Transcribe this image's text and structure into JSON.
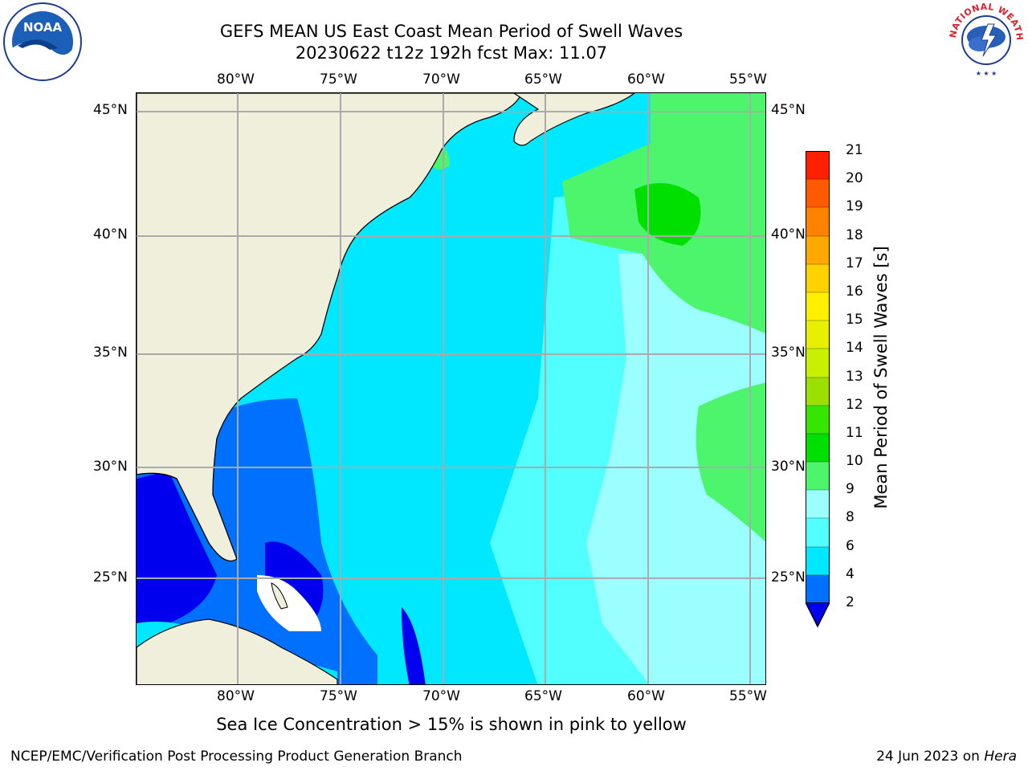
{
  "title": {
    "line1": "GEFS MEAN US East Coast Mean Period of Swell Waves",
    "line2": "20230622 t12z 192h fcst   Max: 11.07"
  },
  "map": {
    "lon_ticks": [
      "80°W",
      "75°W",
      "70°W",
      "65°W",
      "60°W",
      "55°W"
    ],
    "lat_ticks": [
      "45°N",
      "40°N",
      "35°N",
      "30°N",
      "25°N"
    ]
  },
  "colorbar": {
    "title": "Mean Period of Swell Waves [s]",
    "labels": [
      "2",
      "4",
      "6",
      "8",
      "9",
      "10",
      "11",
      "12",
      "13",
      "14",
      "15",
      "16",
      "17",
      "18",
      "19",
      "20",
      "21"
    ],
    "colors": [
      "#0070ff",
      "#00e8ff",
      "#52ffff",
      "#9cffff",
      "#4cf56c",
      "#00e000",
      "#37e600",
      "#9be000",
      "#c8f000",
      "#e6f000",
      "#fff000",
      "#ffd200",
      "#ffa800",
      "#ff8200",
      "#ff5a00",
      "#ff2000"
    ],
    "extend_low_color": "#0000ee"
  },
  "footer": {
    "note": "Sea Ice Concentration > 15% is shown in pink to yellow",
    "left": "NCEP/EMC/Verification Post Processing Product Generation Branch",
    "date": "24 Jun 2023 on ",
    "machine": "Hera"
  },
  "logos": {
    "noaa": "NOAA",
    "nws": "NATIONAL WEATHER SERVICE"
  }
}
